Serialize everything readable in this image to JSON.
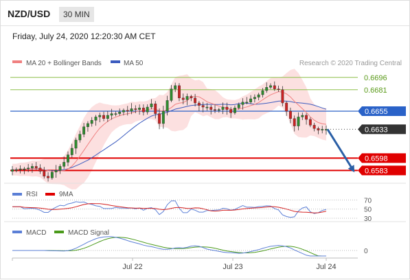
{
  "header": {
    "pair": "NZD/USD",
    "timeframe": "30 MIN"
  },
  "date_line": "Friday, July 24, 2020 12:20:30 AM CET",
  "legend": {
    "bollinger": "MA 20 + Bollinger Bands",
    "ma50": "MA 50",
    "credit": "Research © 2020 Trading Central"
  },
  "rsi_legend": {
    "rsi": "RSI",
    "ma9": "9MA"
  },
  "macd_legend": {
    "macd": "MACD",
    "signal": "MACD Signal"
  },
  "colors": {
    "up": "#2e8b2e",
    "down": "#cc2222",
    "band": "#f9c6c6",
    "ma20": "#f08080",
    "ma50": "#3b5bbf",
    "resistance": "#8dbf4a",
    "support": "#e00000",
    "pivot": "#2a62c8",
    "arrow": "#2a5fa6"
  },
  "chart_data": [
    {
      "type": "candlestick",
      "title": "NZD/USD 30 MIN",
      "xlabel": "",
      "ylabel": "",
      "ylim": [
        0.657,
        0.6705
      ],
      "x_ticks": [
        "Jul 22",
        "Jul 23",
        "Jul 24"
      ],
      "last_price": 0.6633,
      "levels": [
        {
          "value": 0.6696,
          "label": "0.6696",
          "kind": "resistance"
        },
        {
          "value": 0.6681,
          "label": "0.6681",
          "kind": "resistance"
        },
        {
          "value": 0.6655,
          "label": "0.6655",
          "kind": "pivot"
        },
        {
          "value": 0.6633,
          "label": "0.6633",
          "kind": "last"
        },
        {
          "value": 0.6598,
          "label": "0.6598",
          "kind": "support"
        },
        {
          "value": 0.6583,
          "label": "0.6583",
          "kind": "support"
        }
      ],
      "close_series": [
        0.6584,
        0.6584,
        0.6585,
        0.6585,
        0.6586,
        0.6588,
        0.6586,
        0.6582,
        0.6576,
        0.6574,
        0.6581,
        0.6583,
        0.6588,
        0.6593,
        0.6602,
        0.661,
        0.662,
        0.6627,
        0.6636,
        0.664,
        0.6644,
        0.6648,
        0.665,
        0.6646,
        0.665,
        0.6652,
        0.6652,
        0.6654,
        0.6656,
        0.6655,
        0.6658,
        0.6657,
        0.6659,
        0.6654,
        0.666,
        0.6664,
        0.6652,
        0.664,
        0.6655,
        0.6668,
        0.6682,
        0.6686,
        0.6671,
        0.6669,
        0.6673,
        0.6671,
        0.6665,
        0.6662,
        0.666,
        0.666,
        0.6657,
        0.6656,
        0.6657,
        0.666,
        0.6657,
        0.6653,
        0.6659,
        0.6663,
        0.6666,
        0.6666,
        0.667,
        0.6672,
        0.6675,
        0.668,
        0.6684,
        0.6686,
        0.6682,
        0.6681,
        0.6665,
        0.6655,
        0.6646,
        0.6637,
        0.6648,
        0.665,
        0.6645,
        0.6638,
        0.6634,
        0.6632,
        0.6633,
        0.6633
      ],
      "ma20": "smoothed close (MA 20)",
      "ma50": "smoothed close (MA 50)",
      "forecast": "downward arrow from 0.6633 toward 0.6583"
    },
    {
      "type": "line",
      "title": "RSI",
      "series": [
        {
          "name": "RSI"
        },
        {
          "name": "9MA"
        }
      ],
      "y_ticks": [
        "70",
        "50",
        "30"
      ]
    },
    {
      "type": "line",
      "title": "MACD",
      "series": [
        {
          "name": "MACD"
        },
        {
          "name": "MACD Signal"
        }
      ],
      "y_ticks": [
        "0"
      ]
    }
  ]
}
